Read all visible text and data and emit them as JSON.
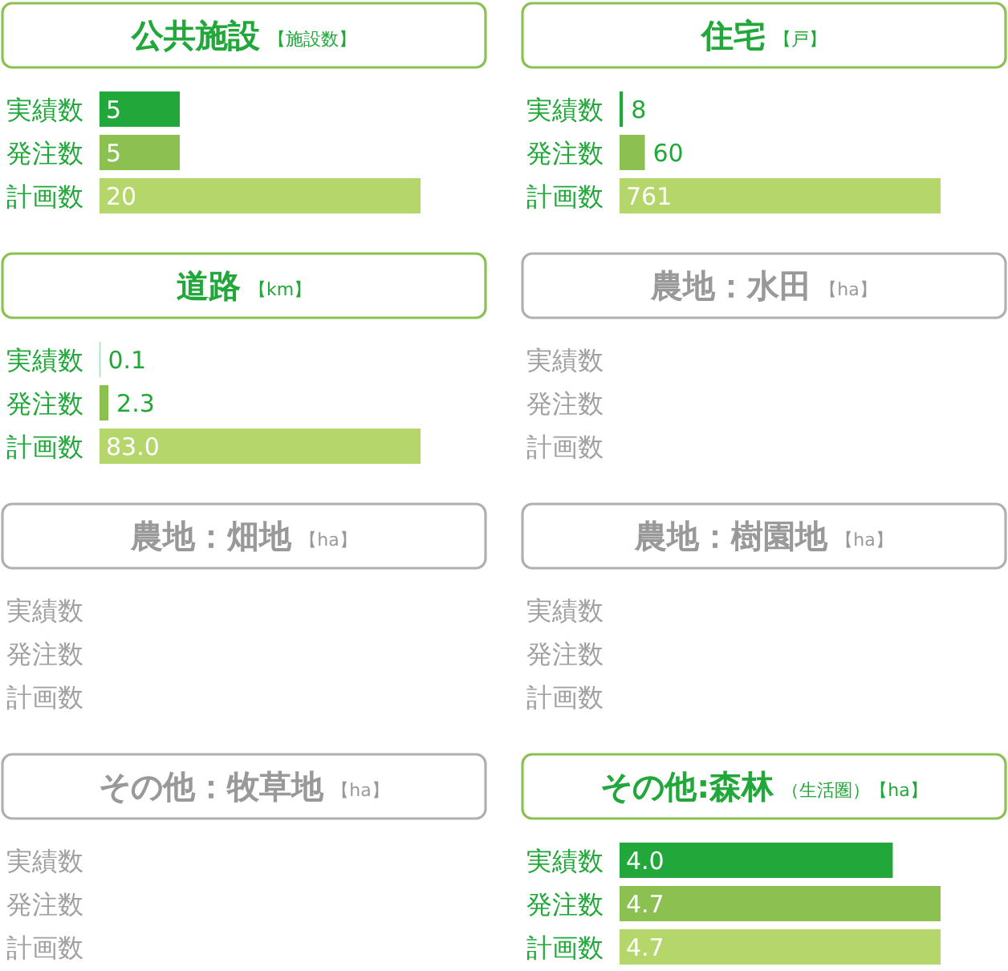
{
  "chart_data": [
    {
      "type": "bar",
      "orientation": "horizontal",
      "title": "公共施設",
      "subtitle": "【施設数】",
      "categories": [
        "実績数",
        "発注数",
        "計画数"
      ],
      "values": [
        5,
        5,
        20
      ],
      "colors": [
        "#22a83a",
        "#8cc152",
        "#b5d66b"
      ],
      "data_labels": true
    },
    {
      "type": "bar",
      "orientation": "horizontal",
      "title": "住宅",
      "subtitle": "【戸】",
      "categories": [
        "実績数",
        "発注数",
        "計画数"
      ],
      "values": [
        8,
        60,
        761
      ],
      "colors": [
        "#22a83a",
        "#8cc152",
        "#b5d66b"
      ],
      "data_labels": true
    },
    {
      "type": "bar",
      "orientation": "horizontal",
      "title": "道路",
      "subtitle": "【km】",
      "categories": [
        "実績数",
        "発注数",
        "計画数"
      ],
      "values": [
        0.1,
        2.3,
        83.0
      ],
      "value_labels": [
        "0.1",
        "2.3",
        "83.0"
      ],
      "colors": [
        "#22a83a",
        "#8cc152",
        "#b5d66b"
      ]
    },
    {
      "type": "other",
      "title": "農地：水田",
      "subtitle": "【ha】",
      "annotations": [
        "実績数",
        "発注数",
        "計画数"
      ]
    },
    {
      "type": "other",
      "title": "農地：畑地",
      "subtitle": "【ha】",
      "annotations": [
        "実績数",
        "発注数",
        "計画数"
      ]
    },
    {
      "type": "other",
      "title": "農地：樹園地",
      "subtitle": "【ha】",
      "annotations": [
        "実績数",
        "発注数",
        "計画数"
      ]
    },
    {
      "type": "other",
      "title": "その他：牧草地",
      "subtitle": "【ha】",
      "annotations": [
        "実績数",
        "発注数",
        "計画数"
      ]
    },
    {
      "type": "bar",
      "orientation": "horizontal",
      "title": "その他:森林",
      "subtitle": "（生活圏）【ha】",
      "categories": [
        "実績数",
        "発注数",
        "計画数"
      ],
      "values": [
        4.0,
        4.7,
        4.7
      ],
      "value_labels": [
        "4.0",
        "4.7",
        "4.7"
      ],
      "colors": [
        "#22a83a",
        "#8cc152",
        "#b5d66b"
      ]
    }
  ]
}
